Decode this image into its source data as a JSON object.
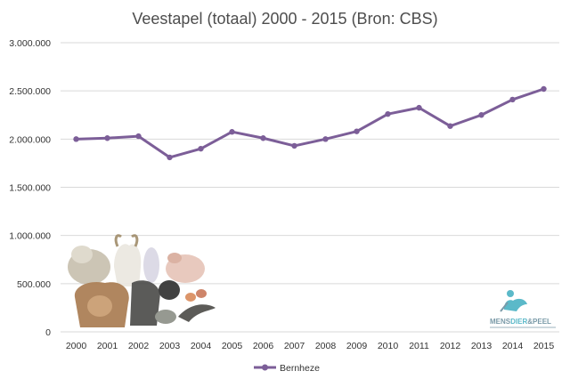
{
  "colors": {
    "series": "#7c5e98",
    "grid": "#d9d9d9",
    "text": "#333333",
    "title": "#4d4d4d",
    "brand_main": "#7a9aa8",
    "brand_accent": "#5bb9c9"
  },
  "chart_data": {
    "type": "line",
    "title": "Veestapel (totaal) 2000 - 2015 (Bron: CBS)",
    "xlabel": "",
    "ylabel": "",
    "categories": [
      "2000",
      "2001",
      "2002",
      "2003",
      "2004",
      "2005",
      "2006",
      "2007",
      "2008",
      "2009",
      "2010",
      "2011",
      "2012",
      "2013",
      "2014",
      "2015"
    ],
    "series": [
      {
        "name": "Bernheze",
        "values": [
          2000000,
          2010000,
          2030000,
          1810000,
          1900000,
          2075000,
          2010000,
          1930000,
          2000000,
          2080000,
          2260000,
          2325000,
          2135000,
          2250000,
          2410000,
          2520000
        ]
      }
    ],
    "ylim": [
      0,
      3000000
    ],
    "y_ticks": [
      0,
      500000,
      1000000,
      1500000,
      2000000,
      2500000,
      3000000
    ],
    "y_tick_labels": [
      "0",
      "500.000",
      "1.000.000",
      "1.500.000",
      "2.000.000",
      "2.500.000",
      "3.000.000"
    ],
    "grid": true,
    "legend_position": "bottom"
  },
  "watermark": {
    "logo_part1": "MENS",
    "logo_part2": "DIER",
    "logo_part3": "&PEEL",
    "icon": "person-with-animal-icon"
  },
  "decoration": {
    "icon": "farm-animals-collage"
  }
}
